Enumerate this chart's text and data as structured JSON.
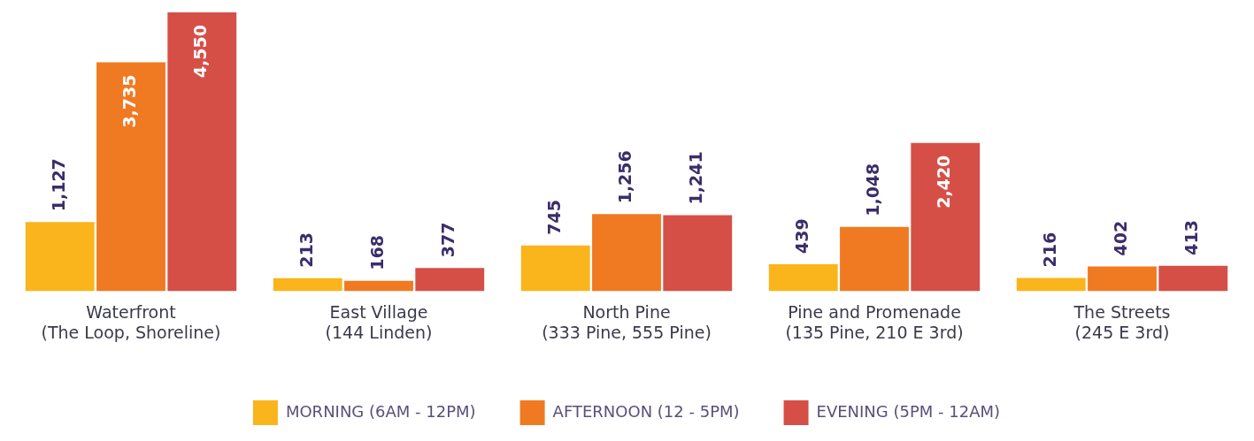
{
  "chart_data": {
    "type": "bar",
    "categories": [
      "Waterfront\n(The Loop, Shoreline)",
      "East Village\n(144 Linden)",
      "North Pine\n(333 Pine, 555 Pine)",
      "Pine and Promenade\n(135 Pine, 210 E 3rd)",
      "The Streets\n(245 E 3rd)"
    ],
    "series": [
      {
        "name": "MORNING (6AM - 12PM)",
        "color": "#f9b51b",
        "values": [
          1127,
          213,
          745,
          439,
          216
        ],
        "value_labels": [
          "1,127",
          "213",
          "745",
          "439",
          "216"
        ]
      },
      {
        "name": "AFTERNOON (12 - 5PM)",
        "color": "#f07a22",
        "values": [
          3735,
          168,
          1256,
          1048,
          402
        ],
        "value_labels": [
          "3,735",
          "168",
          "1,256",
          "1,048",
          "402"
        ]
      },
      {
        "name": "EVENING (5PM - 12AM)",
        "color": "#d64f47",
        "values": [
          4550,
          377,
          1241,
          2420,
          413
        ],
        "value_labels": [
          "4,550",
          "377",
          "1,241",
          "2,420",
          "413"
        ]
      }
    ],
    "grid": false,
    "legend": "bottom"
  }
}
